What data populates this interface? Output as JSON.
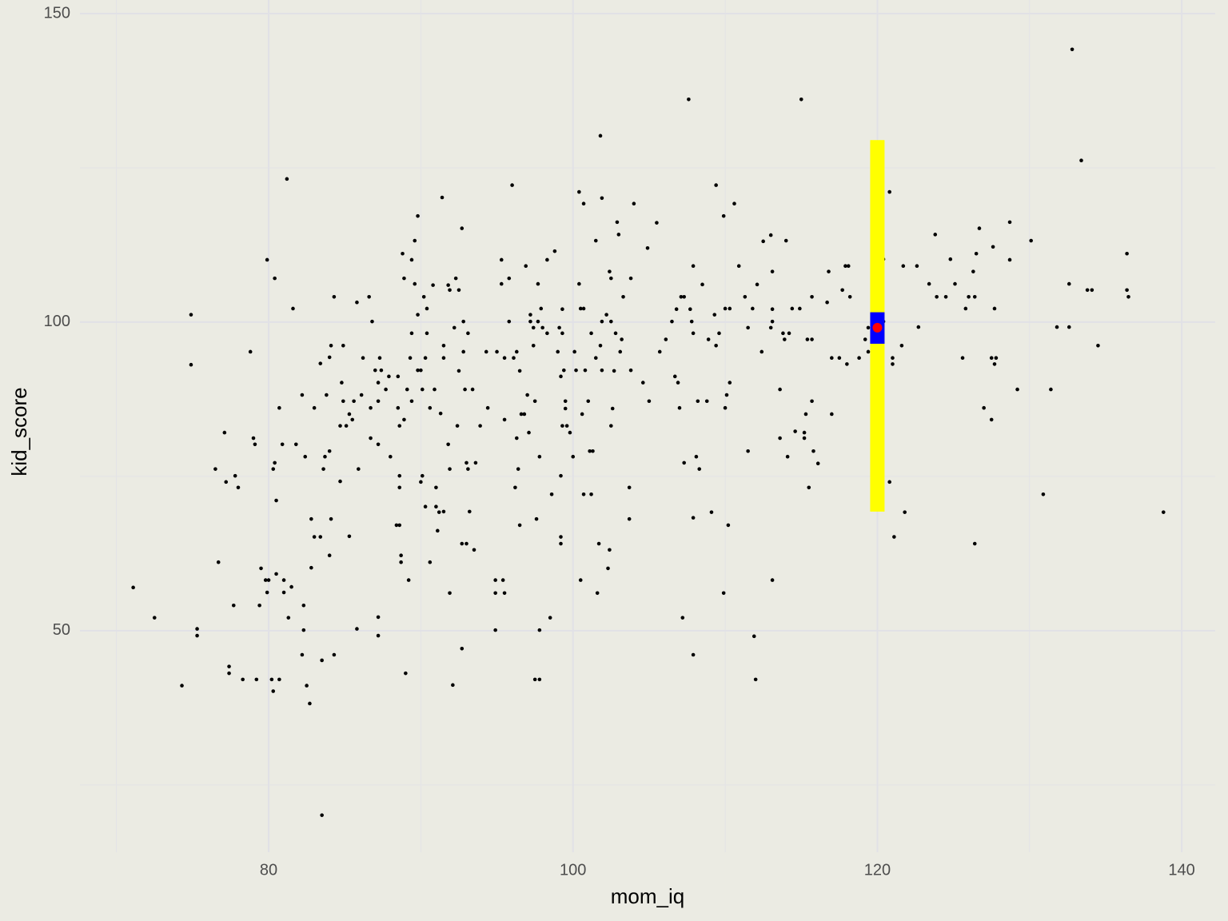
{
  "chart_data": {
    "type": "scatter",
    "x_label": "mom_iq",
    "y_label": "kid_score",
    "xlim": [
      67.6,
      142.2
    ],
    "ylim": [
      14.1,
      152.2
    ],
    "xticks": [
      80,
      100,
      120,
      140
    ],
    "yticks": [
      50,
      100,
      150
    ],
    "x_minor_grid": [
      70,
      90,
      110,
      130
    ],
    "y_minor_grid": [
      25,
      75,
      125
    ],
    "grid": true,
    "color": "#000000",
    "x": [
      71.1,
      72.5,
      74.3,
      74.9,
      74.9,
      75.3,
      75.3,
      76.5,
      76.7,
      77.1,
      77.2,
      77.4,
      77.4,
      77.7,
      77.8,
      78.0,
      78.3,
      78.8,
      79.0,
      79.1,
      79.2,
      79.4,
      79.5,
      79.9,
      79.8,
      79.9,
      80.0,
      80.2,
      80.3,
      80.3,
      80.4,
      80.4,
      80.5,
      80.5,
      80.7,
      80.7,
      80.9,
      81.0,
      81.0,
      81.2,
      81.3,
      81.5,
      81.6,
      81.8,
      82.2,
      82.2,
      82.3,
      82.3,
      82.4,
      82.5,
      82.7,
      82.8,
      82.8,
      83.0,
      83.0,
      83.4,
      83.4,
      83.5,
      83.5,
      83.6,
      83.7,
      83.8,
      84.0,
      84.0,
      84.0,
      84.1,
      84.1,
      84.3,
      84.3,
      84.7,
      84.7,
      84.8,
      84.9,
      84.9,
      85.1,
      85.3,
      85.3,
      85.5,
      85.6,
      85.8,
      85.8,
      85.9,
      86.1,
      86.2,
      86.6,
      86.7,
      86.7,
      86.8,
      87.0,
      87.2,
      87.2,
      87.2,
      87.2,
      87.2,
      87.3,
      87.4,
      87.7,
      87.9,
      88.0,
      88.4,
      88.6,
      88.5,
      88.5,
      88.6,
      88.6,
      88.6,
      88.7,
      88.7,
      88.8,
      88.9,
      88.9,
      89.0,
      89.1,
      89.2,
      89.3,
      89.4,
      89.4,
      89.4,
      89.6,
      89.6,
      89.8,
      89.8,
      89.8,
      90.0,
      90.0,
      90.1,
      90.1,
      90.2,
      90.3,
      90.3,
      90.4,
      90.4,
      90.6,
      90.6,
      90.8,
      90.9,
      91.0,
      91.0,
      91.1,
      91.2,
      91.3,
      91.4,
      91.5,
      91.5,
      91.5,
      91.8,
      91.8,
      91.9,
      91.9,
      91.9,
      92.1,
      92.2,
      92.3,
      92.4,
      92.5,
      92.5,
      92.7,
      92.7,
      92.7,
      92.8,
      92.8,
      92.9,
      93.0,
      93.0,
      93.1,
      93.1,
      93.2,
      93.4,
      93.5,
      93.6,
      93.9,
      94.3,
      94.4,
      94.9,
      94.9,
      94.9,
      95.0,
      95.3,
      95.3,
      95.4,
      95.5,
      95.5,
      95.5,
      95.8,
      95.8,
      96.0,
      96.1,
      96.2,
      96.3,
      96.3,
      96.4,
      96.5,
      96.5,
      96.6,
      96.8,
      96.9,
      97.0,
      97.1,
      97.2,
      97.2,
      97.4,
      97.4,
      97.5,
      97.5,
      97.6,
      97.7,
      97.7,
      97.8,
      97.8,
      97.8,
      97.9,
      98.0,
      98.3,
      98.3,
      98.5,
      98.6,
      98.8,
      99.0,
      99.1,
      99.2,
      99.2,
      99.2,
      99.2,
      99.3,
      99.3,
      99.3,
      99.4,
      99.5,
      99.5,
      99.6,
      99.8,
      100.0,
      100.1,
      100.2,
      100.4,
      100.4,
      100.5,
      100.5,
      100.6,
      100.7,
      100.7,
      100.7,
      100.8,
      101.0,
      101.1,
      101.2,
      101.2,
      101.3,
      101.5,
      101.5,
      101.6,
      101.7,
      101.8,
      101.8,
      101.9,
      101.9,
      101.9,
      102.2,
      102.3,
      102.4,
      102.4,
      102.5,
      102.5,
      102.5,
      102.6,
      102.7,
      102.8,
      102.9,
      103.0,
      103.1,
      103.2,
      103.3,
      103.7,
      103.7,
      103.8,
      103.8,
      104.0,
      104.6,
      104.9,
      105.0,
      105.5,
      105.7,
      106.1,
      106.5,
      106.7,
      106.8,
      106.9,
      107.0,
      107.1,
      107.2,
      107.3,
      107.3,
      107.6,
      107.7,
      107.8,
      107.9,
      107.9,
      107.9,
      107.9,
      108.1,
      108.2,
      108.3,
      108.5,
      108.8,
      108.9,
      109.1,
      109.3,
      109.4,
      109.4,
      109.6,
      109.9,
      109.9,
      110.0,
      110.0,
      110.1,
      110.2,
      110.3,
      110.6,
      110.3,
      110.9,
      111.3,
      111.5,
      111.5,
      111.8,
      111.9,
      112.0,
      112.1,
      112.4,
      112.5,
      113.0,
      113.0,
      113.1,
      113.1,
      113.1,
      113.1,
      113.6,
      113.6,
      113.8,
      113.9,
      114.0,
      114.1,
      114.2,
      114.4,
      114.6,
      114.9,
      115.0,
      115.2,
      115.2,
      115.3,
      115.4,
      115.5,
      115.7,
      115.7,
      115.7,
      115.8,
      116.1,
      116.7,
      116.8,
      117.0,
      117.0,
      117.5,
      117.7,
      117.9,
      118.0,
      118.1,
      118.2,
      118.8,
      119.2,
      119.4,
      119.4,
      120.4,
      120.4,
      120.8,
      120.8,
      121.0,
      121.0,
      121.1,
      121.6,
      121.7,
      121.8,
      122.6,
      122.7,
      123.4,
      123.8,
      123.9,
      124.5,
      124.8,
      125.1,
      125.6,
      125.8,
      126.0,
      126.3,
      126.4,
      126.4,
      126.5,
      126.7,
      127.0,
      127.5,
      127.5,
      127.6,
      127.7,
      127.7,
      127.8,
      128.7,
      128.7,
      129.2,
      130.1,
      130.9,
      131.4,
      131.8,
      132.6,
      132.6,
      132.8,
      133.4,
      133.8,
      134.1,
      134.5,
      136.4,
      136.4,
      136.5,
      138.8
    ],
    "values": [
      57.0,
      52.1,
      41.1,
      101.2,
      93.1,
      50.3,
      49.2,
      76.2,
      61.1,
      82.1,
      74.1,
      44.2,
      43.1,
      54.1,
      75.1,
      73.2,
      42.1,
      95.2,
      81.2,
      80.2,
      42.1,
      54.1,
      60.1,
      110.1,
      58.2,
      56.2,
      58.2,
      42.1,
      40.2,
      76.2,
      77.2,
      107.1,
      71.1,
      59.2,
      86.1,
      42.1,
      80.2,
      56.2,
      58.2,
      123.2,
      52.1,
      57.1,
      102.2,
      80.2,
      88.2,
      46.1,
      54.1,
      50.1,
      78.2,
      41.1,
      38.2,
      60.2,
      68.1,
      86.1,
      65.2,
      65.2,
      93.3,
      45.2,
      20.1,
      76.2,
      78.2,
      88.2,
      79.1,
      94.3,
      62.2,
      68.1,
      96.2,
      46.1,
      104.1,
      74.2,
      83.2,
      90.2,
      96.2,
      87.2,
      83.2,
      65.3,
      85.1,
      84.2,
      87.2,
      50.3,
      103.2,
      76.2,
      88.2,
      94.2,
      104.1,
      86.1,
      81.2,
      100.1,
      92.2,
      90.2,
      52.2,
      49.2,
      87.2,
      80.2,
      94.2,
      92.2,
      89.1,
      91.2,
      78.2,
      67.1,
      67.1,
      86.1,
      91.2,
      75.1,
      83.2,
      73.2,
      62.2,
      61.1,
      111.1,
      84.2,
      107.1,
      43.1,
      89.1,
      58.2,
      94.2,
      110.1,
      98.2,
      87.2,
      113.2,
      106.2,
      92.2,
      117.2,
      101.2,
      92.2,
      74.1,
      75.1,
      89.1,
      104.1,
      70.1,
      94.2,
      102.2,
      98.2,
      61.1,
      86.1,
      106.0,
      89.1,
      73.2,
      70.1,
      66.2,
      69.2,
      85.2,
      120.2,
      96.2,
      69.3,
      94.2,
      80.2,
      106.0,
      56.1,
      105.2,
      76.2,
      41.2,
      99.1,
      107.1,
      83.2,
      105.2,
      92.1,
      115.2,
      64.1,
      47.1,
      100.1,
      95.2,
      89.1,
      77.2,
      64.1,
      76.2,
      98.2,
      69.3,
      89.1,
      63.1,
      77.2,
      83.2,
      95.2,
      86.1,
      58.2,
      56.1,
      50.1,
      95.2,
      110.1,
      106.2,
      58.2,
      84.2,
      94.2,
      56.1,
      100.1,
      107.1,
      122.2,
      94.2,
      73.2,
      81.2,
      95.2,
      76.2,
      92.1,
      67.1,
      85.1,
      85.1,
      109.1,
      88.2,
      82.1,
      101.2,
      100.1,
      96.2,
      99.1,
      87.2,
      42.1,
      68.1,
      106.2,
      100.1,
      42.1,
      50.1,
      78.2,
      102.2,
      99.1,
      98.2,
      110.1,
      52.1,
      72.1,
      111.5,
      95.2,
      99.1,
      91.2,
      75.1,
      65.2,
      64.1,
      98.2,
      83.2,
      102.1,
      92.2,
      87.2,
      86.0,
      83.2,
      82.1,
      78.2,
      95.2,
      92.2,
      106.2,
      121.1,
      102.2,
      58.2,
      85.1,
      102.2,
      119.2,
      72.1,
      92.2,
      87.2,
      79.1,
      98.2,
      72.1,
      79.1,
      113.2,
      94.2,
      56.1,
      64.1,
      130.2,
      96.2,
      120.1,
      100.1,
      92.2,
      101.2,
      60.1,
      108.2,
      63.1,
      107.1,
      83.2,
      100.1,
      86.0,
      92.1,
      98.2,
      116.2,
      114.2,
      95.2,
      97.2,
      104.1,
      73.2,
      68.1,
      92.2,
      107.1,
      119.2,
      90.2,
      112.0,
      87.2,
      116.1,
      95.2,
      97.2,
      100.1,
      91.2,
      102.1,
      90.2,
      86.1,
      104.1,
      52.1,
      77.2,
      104.1,
      136.1,
      102.1,
      100.1,
      46.1,
      68.3,
      109.1,
      98.2,
      78.2,
      87.2,
      76.2,
      106.1,
      87.2,
      97.2,
      69.2,
      101.2,
      96.2,
      122.2,
      98.2,
      56.1,
      117.2,
      102.2,
      86.1,
      88.2,
      67.1,
      90.2,
      119.2,
      102.2,
      109.1,
      104.1,
      99.1,
      79.1,
      102.2,
      49.1,
      42.1,
      106.1,
      95.2,
      113.1,
      99.1,
      114.1,
      58.2,
      100.1,
      108.2,
      102.1,
      89.1,
      81.2,
      98.2,
      97.2,
      113.2,
      78.2,
      98.2,
      102.2,
      82.3,
      102.2,
      136.1,
      82.1,
      81.2,
      85.1,
      97.2,
      73.2,
      104.1,
      97.2,
      87.2,
      79.1,
      77.1,
      103.2,
      108.2,
      94.2,
      85.1,
      94.2,
      105.2,
      109.1,
      93.2,
      109.1,
      104.1,
      94.2,
      97.2,
      95.2,
      99.1,
      110.2,
      100.1,
      74.1,
      121.1,
      94.2,
      93.2,
      65.2,
      96.2,
      109.1,
      69.2,
      109.1,
      99.2,
      106.2,
      114.2,
      104.1,
      104.1,
      110.2,
      106.2,
      94.2,
      102.2,
      104.1,
      108.2,
      104.1,
      64.1,
      111.1,
      115.2,
      86.1,
      94.2,
      84.2,
      112.2,
      102.2,
      93.2,
      94.2,
      116.2,
      110.1,
      89.1,
      113.2,
      72.1,
      89.1,
      99.2,
      99.2,
      106.2,
      144.2,
      126.2,
      105.2,
      105.2,
      96.2,
      111.1,
      105.2,
      104.1,
      69.2
    ],
    "interval": {
      "x": 120,
      "low": 69.3,
      "high": 129.5,
      "color": "#ffff00"
    },
    "confidence": {
      "x": 120,
      "low": 96.5,
      "high": 101.6,
      "color": "#0000ff"
    },
    "prediction": {
      "x": 120,
      "y": 99.1,
      "color": "#ff0000"
    }
  }
}
